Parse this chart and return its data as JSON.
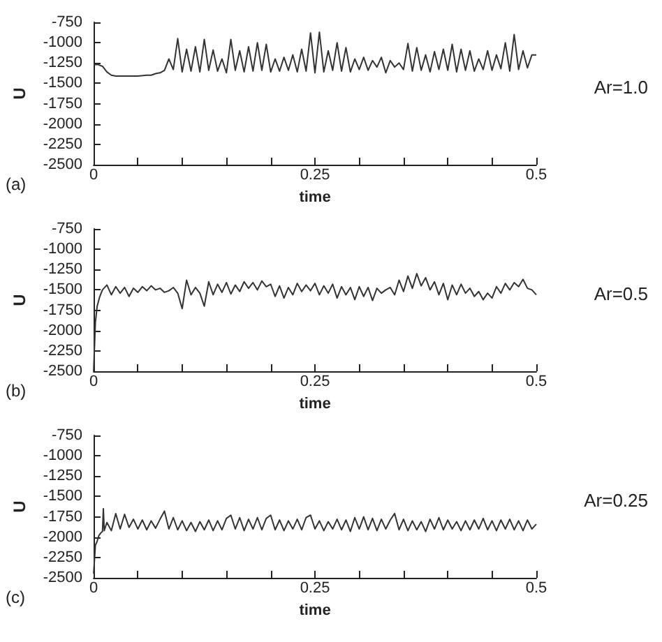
{
  "chart_data": [
    {
      "type": "line",
      "xlabel": "time",
      "ylabel": "U",
      "annotations": [
        "(a)",
        "Ar=1.0"
      ],
      "grid": false,
      "marker": "none",
      "line_style": "solid",
      "xlim": [
        0,
        0.5
      ],
      "xticks": [
        0,
        {
          "value": 0.05,
          "label": null
        },
        {
          "value": 0.1,
          "label": null
        },
        {
          "value": 0.15,
          "label": null
        },
        {
          "value": 0.2,
          "label": null
        },
        0.25,
        {
          "value": 0.3,
          "label": null
        },
        {
          "value": 0.35,
          "label": null
        },
        {
          "value": 0.4,
          "label": null
        },
        {
          "value": 0.45,
          "label": null
        },
        0.5
      ],
      "ylim": [
        -2500,
        -750
      ],
      "yticks": [
        -2500,
        -2250,
        -2000,
        -1750,
        -1500,
        -1250,
        -1000,
        -750
      ],
      "series": [
        {
          "color": "#333333",
          "x": [
            0,
            0.005,
            0.01,
            0.015,
            0.02,
            0.025,
            0.03,
            0.04,
            0.05,
            0.06,
            0.065,
            0.07,
            0.075,
            0.08,
            0.085,
            0.09,
            0.095,
            0.1,
            0.105,
            0.11,
            0.115,
            0.12,
            0.125,
            0.13,
            0.135,
            0.14,
            0.145,
            0.15,
            0.155,
            0.16,
            0.165,
            0.17,
            0.175,
            0.18,
            0.185,
            0.19,
            0.195,
            0.2,
            0.205,
            0.21,
            0.215,
            0.22,
            0.225,
            0.23,
            0.235,
            0.24,
            0.245,
            0.25,
            0.255,
            0.26,
            0.265,
            0.27,
            0.275,
            0.28,
            0.285,
            0.29,
            0.295,
            0.3,
            0.305,
            0.31,
            0.315,
            0.32,
            0.325,
            0.33,
            0.335,
            0.34,
            0.345,
            0.35,
            0.355,
            0.36,
            0.365,
            0.37,
            0.375,
            0.38,
            0.385,
            0.39,
            0.395,
            0.4,
            0.405,
            0.41,
            0.415,
            0.42,
            0.425,
            0.43,
            0.435,
            0.44,
            0.445,
            0.45,
            0.455,
            0.46,
            0.465,
            0.47,
            0.475,
            0.48,
            0.485,
            0.49,
            0.495,
            0.5
          ],
          "values": [
            -1270,
            -1270,
            -1290,
            -1360,
            -1400,
            -1410,
            -1410,
            -1410,
            -1410,
            -1400,
            -1400,
            -1380,
            -1370,
            -1340,
            -1200,
            -1330,
            -950,
            -1360,
            -1080,
            -1350,
            -1050,
            -1360,
            -960,
            -1340,
            -1090,
            -1350,
            -1200,
            -1370,
            -960,
            -1340,
            -1100,
            -1360,
            -1050,
            -1350,
            -1000,
            -1340,
            -1020,
            -1360,
            -1200,
            -1350,
            -1180,
            -1340,
            -1150,
            -1360,
            -1080,
            -1350,
            -880,
            -1370,
            -870,
            -1360,
            -1100,
            -1340,
            -1000,
            -1350,
            -1060,
            -1360,
            -1200,
            -1330,
            -1180,
            -1340,
            -1220,
            -1300,
            -1180,
            -1370,
            -1220,
            -1300,
            -1250,
            -1330,
            -1010,
            -1350,
            -1060,
            -1340,
            -1150,
            -1360,
            -1110,
            -1330,
            -1080,
            -1340,
            -1020,
            -1360,
            -1080,
            -1340,
            -1100,
            -1350,
            -1200,
            -1330,
            -1100,
            -1340,
            -1150,
            -1320,
            -1000,
            -1350,
            -900,
            -1330,
            -1100,
            -1310,
            -1150,
            -1150
          ]
        }
      ]
    },
    {
      "type": "line",
      "xlabel": "time",
      "ylabel": "U",
      "annotations": [
        "(b)",
        "Ar=0.5"
      ],
      "grid": false,
      "marker": "none",
      "line_style": "solid",
      "xlim": [
        0,
        0.5
      ],
      "xticks": [
        0,
        {
          "value": 0.05,
          "label": null
        },
        {
          "value": 0.1,
          "label": null
        },
        {
          "value": 0.15,
          "label": null
        },
        {
          "value": 0.2,
          "label": null
        },
        0.25,
        {
          "value": 0.3,
          "label": null
        },
        {
          "value": 0.35,
          "label": null
        },
        {
          "value": 0.4,
          "label": null
        },
        {
          "value": 0.45,
          "label": null
        },
        0.5
      ],
      "ylim": [
        -2500,
        -750
      ],
      "yticks": [
        -2500,
        -2250,
        -2000,
        -1750,
        -1500,
        -1250,
        -1000,
        -750
      ],
      "series": [
        {
          "color": "#333333",
          "x": [
            0,
            0.002,
            0.004,
            0.007,
            0.01,
            0.015,
            0.02,
            0.025,
            0.03,
            0.035,
            0.04,
            0.045,
            0.05,
            0.055,
            0.06,
            0.065,
            0.07,
            0.075,
            0.08,
            0.085,
            0.09,
            0.095,
            0.1,
            0.105,
            0.11,
            0.115,
            0.12,
            0.125,
            0.13,
            0.135,
            0.14,
            0.145,
            0.15,
            0.155,
            0.16,
            0.165,
            0.17,
            0.175,
            0.18,
            0.185,
            0.19,
            0.195,
            0.2,
            0.205,
            0.21,
            0.215,
            0.22,
            0.225,
            0.23,
            0.235,
            0.24,
            0.245,
            0.25,
            0.255,
            0.26,
            0.265,
            0.27,
            0.275,
            0.28,
            0.285,
            0.29,
            0.295,
            0.3,
            0.305,
            0.31,
            0.315,
            0.32,
            0.325,
            0.33,
            0.335,
            0.34,
            0.345,
            0.35,
            0.355,
            0.36,
            0.365,
            0.37,
            0.375,
            0.38,
            0.385,
            0.39,
            0.395,
            0.4,
            0.405,
            0.41,
            0.415,
            0.42,
            0.425,
            0.43,
            0.435,
            0.44,
            0.445,
            0.45,
            0.455,
            0.46,
            0.465,
            0.47,
            0.475,
            0.48,
            0.485,
            0.49,
            0.495,
            0.5
          ],
          "values": [
            -2500,
            -1900,
            -1700,
            -1580,
            -1500,
            -1440,
            -1560,
            -1460,
            -1540,
            -1470,
            -1580,
            -1480,
            -1530,
            -1460,
            -1510,
            -1450,
            -1500,
            -1480,
            -1530,
            -1510,
            -1470,
            -1540,
            -1730,
            -1380,
            -1560,
            -1470,
            -1540,
            -1700,
            -1400,
            -1560,
            -1430,
            -1530,
            -1410,
            -1550,
            -1440,
            -1520,
            -1400,
            -1480,
            -1410,
            -1500,
            -1390,
            -1460,
            -1430,
            -1580,
            -1450,
            -1600,
            -1470,
            -1560,
            -1420,
            -1520,
            -1440,
            -1510,
            -1420,
            -1560,
            -1450,
            -1540,
            -1430,
            -1600,
            -1460,
            -1560,
            -1470,
            -1620,
            -1460,
            -1580,
            -1470,
            -1630,
            -1480,
            -1540,
            -1500,
            -1470,
            -1560,
            -1380,
            -1520,
            -1330,
            -1480,
            -1300,
            -1450,
            -1350,
            -1500,
            -1400,
            -1560,
            -1420,
            -1620,
            -1440,
            -1560,
            -1430,
            -1540,
            -1480,
            -1580,
            -1520,
            -1620,
            -1540,
            -1600,
            -1460,
            -1540,
            -1420,
            -1500,
            -1410,
            -1460,
            -1370,
            -1480,
            -1500,
            -1560
          ]
        }
      ]
    },
    {
      "type": "line",
      "xlabel": "time",
      "ylabel": "U",
      "annotations": [
        "(c)",
        "Ar=0.25"
      ],
      "grid": false,
      "marker": "none",
      "line_style": "solid",
      "xlim": [
        0,
        0.5
      ],
      "xticks": [
        0,
        {
          "value": 0.05,
          "label": null
        },
        {
          "value": 0.1,
          "label": null
        },
        {
          "value": 0.15,
          "label": null
        },
        {
          "value": 0.2,
          "label": null
        },
        0.25,
        {
          "value": 0.3,
          "label": null
        },
        {
          "value": 0.35,
          "label": null
        },
        {
          "value": 0.4,
          "label": null
        },
        {
          "value": 0.45,
          "label": null
        },
        0.5
      ],
      "ylim": [
        -2500,
        -750
      ],
      "yticks": [
        -2500,
        -2250,
        -2000,
        -1750,
        -1500,
        -1250,
        -1000,
        -750
      ],
      "series": [
        {
          "color": "#333333",
          "x": [
            0,
            0.002,
            0.004,
            0.006,
            0.008,
            0.01,
            0.011,
            0.012,
            0.015,
            0.02,
            0.025,
            0.03,
            0.035,
            0.04,
            0.045,
            0.05,
            0.055,
            0.06,
            0.065,
            0.07,
            0.075,
            0.08,
            0.085,
            0.09,
            0.095,
            0.1,
            0.105,
            0.11,
            0.115,
            0.12,
            0.125,
            0.13,
            0.135,
            0.14,
            0.145,
            0.15,
            0.155,
            0.16,
            0.165,
            0.17,
            0.175,
            0.18,
            0.185,
            0.19,
            0.195,
            0.2,
            0.205,
            0.21,
            0.215,
            0.22,
            0.225,
            0.23,
            0.235,
            0.24,
            0.245,
            0.25,
            0.255,
            0.26,
            0.265,
            0.27,
            0.275,
            0.28,
            0.285,
            0.29,
            0.295,
            0.3,
            0.305,
            0.31,
            0.315,
            0.32,
            0.325,
            0.33,
            0.335,
            0.34,
            0.345,
            0.35,
            0.355,
            0.36,
            0.365,
            0.37,
            0.375,
            0.38,
            0.385,
            0.39,
            0.395,
            0.4,
            0.405,
            0.41,
            0.415,
            0.42,
            0.425,
            0.43,
            0.435,
            0.44,
            0.445,
            0.45,
            0.455,
            0.46,
            0.465,
            0.47,
            0.475,
            0.48,
            0.485,
            0.49,
            0.495,
            0.5
          ],
          "values": [
            -2450,
            -2100,
            -2050,
            -1980,
            -1950,
            -1930,
            -1650,
            -1920,
            -1820,
            -1920,
            -1710,
            -1900,
            -1720,
            -1880,
            -1780,
            -1900,
            -1790,
            -1910,
            -1800,
            -1890,
            -1780,
            -1680,
            -1900,
            -1760,
            -1910,
            -1800,
            -1920,
            -1820,
            -1930,
            -1810,
            -1910,
            -1790,
            -1920,
            -1800,
            -1910,
            -1770,
            -1730,
            -1900,
            -1760,
            -1920,
            -1780,
            -1900,
            -1760,
            -1910,
            -1770,
            -1730,
            -1910,
            -1790,
            -1920,
            -1800,
            -1900,
            -1780,
            -1910,
            -1760,
            -1730,
            -1900,
            -1800,
            -1920,
            -1810,
            -1900,
            -1780,
            -1910,
            -1790,
            -1930,
            -1760,
            -1900,
            -1750,
            -1910,
            -1770,
            -1920,
            -1780,
            -1900,
            -1790,
            -1710,
            -1910,
            -1780,
            -1920,
            -1800,
            -1910,
            -1810,
            -1930,
            -1780,
            -1900,
            -1760,
            -1910,
            -1790,
            -1900,
            -1810,
            -1920,
            -1800,
            -1910,
            -1790,
            -1900,
            -1770,
            -1910,
            -1800,
            -1920,
            -1790,
            -1900,
            -1780,
            -1910,
            -1800,
            -1920,
            -1790,
            -1900,
            -1840
          ]
        }
      ]
    }
  ]
}
